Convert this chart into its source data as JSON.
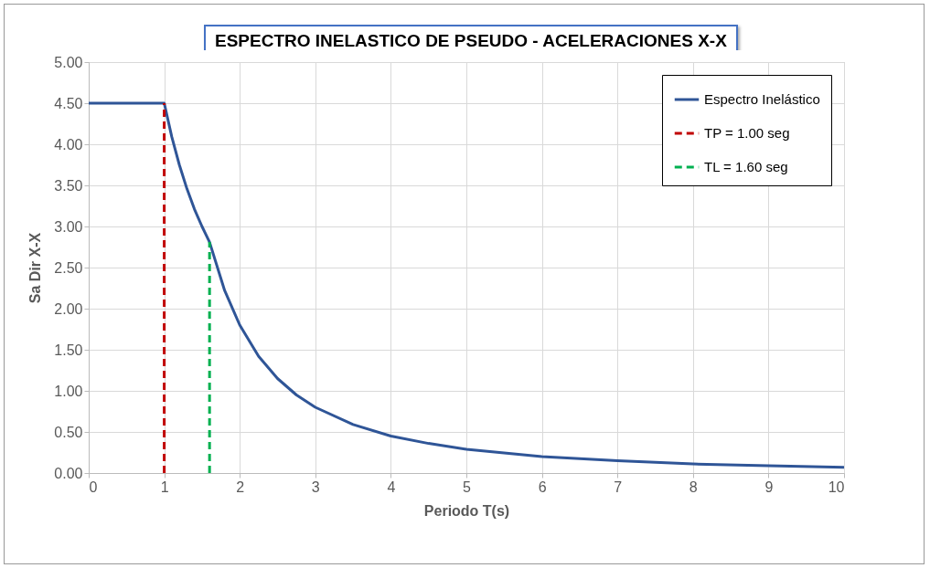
{
  "chart_data": {
    "type": "line",
    "title": "ESPECTRO INELASTICO DE PSEUDO - ACELERACIONES X-X",
    "xlabel": "Periodo T(s)",
    "ylabel": "Sa Dir X-X",
    "xlim": [
      0,
      10
    ],
    "xticks": [
      0,
      1,
      2,
      3,
      4,
      5,
      6,
      7,
      8,
      9,
      10
    ],
    "ylim": [
      0,
      5
    ],
    "yticks": [
      {
        "value": 0,
        "label": "0.00"
      },
      {
        "value": 0.5,
        "label": "0.50"
      },
      {
        "value": 1,
        "label": "1.00"
      },
      {
        "value": 1.5,
        "label": "1.50"
      },
      {
        "value": 2,
        "label": "2.00"
      },
      {
        "value": 2.5,
        "label": "2.50"
      },
      {
        "value": 3,
        "label": "3.00"
      },
      {
        "value": 3.5,
        "label": "3.50"
      },
      {
        "value": 4,
        "label": "4.00"
      },
      {
        "value": 4.5,
        "label": "4.50"
      },
      {
        "value": 5,
        "label": "5.00"
      }
    ],
    "grid": true,
    "legend": "top right",
    "marker": "none",
    "series": [
      {
        "name": "Espectro Inelástico",
        "color": "#2f5597",
        "line_style": "solid",
        "x": [
          0,
          0.5,
          1,
          1.1,
          1.2,
          1.3,
          1.4,
          1.5,
          1.6,
          1.8,
          2,
          2.25,
          2.5,
          2.75,
          3,
          3.5,
          4,
          4.5,
          5,
          6,
          7,
          8,
          9,
          10
        ],
        "values": [
          4.5,
          4.5,
          4.5,
          4.09,
          3.75,
          3.46,
          3.21,
          3.0,
          2.81,
          2.22,
          1.8,
          1.42,
          1.15,
          0.95,
          0.8,
          0.59,
          0.45,
          0.36,
          0.29,
          0.2,
          0.15,
          0.11,
          0.09,
          0.07
        ]
      },
      {
        "name": "TP = 1.00 seg",
        "color": "#c00000",
        "line_style": "dashed",
        "x": [
          1,
          1
        ],
        "values": [
          0,
          4.5
        ]
      },
      {
        "name": "TL = 1.60 seg",
        "color": "#00b050",
        "line_style": "dashed",
        "x": [
          1.6,
          1.6
        ],
        "values": [
          0,
          2.81
        ]
      }
    ]
  }
}
